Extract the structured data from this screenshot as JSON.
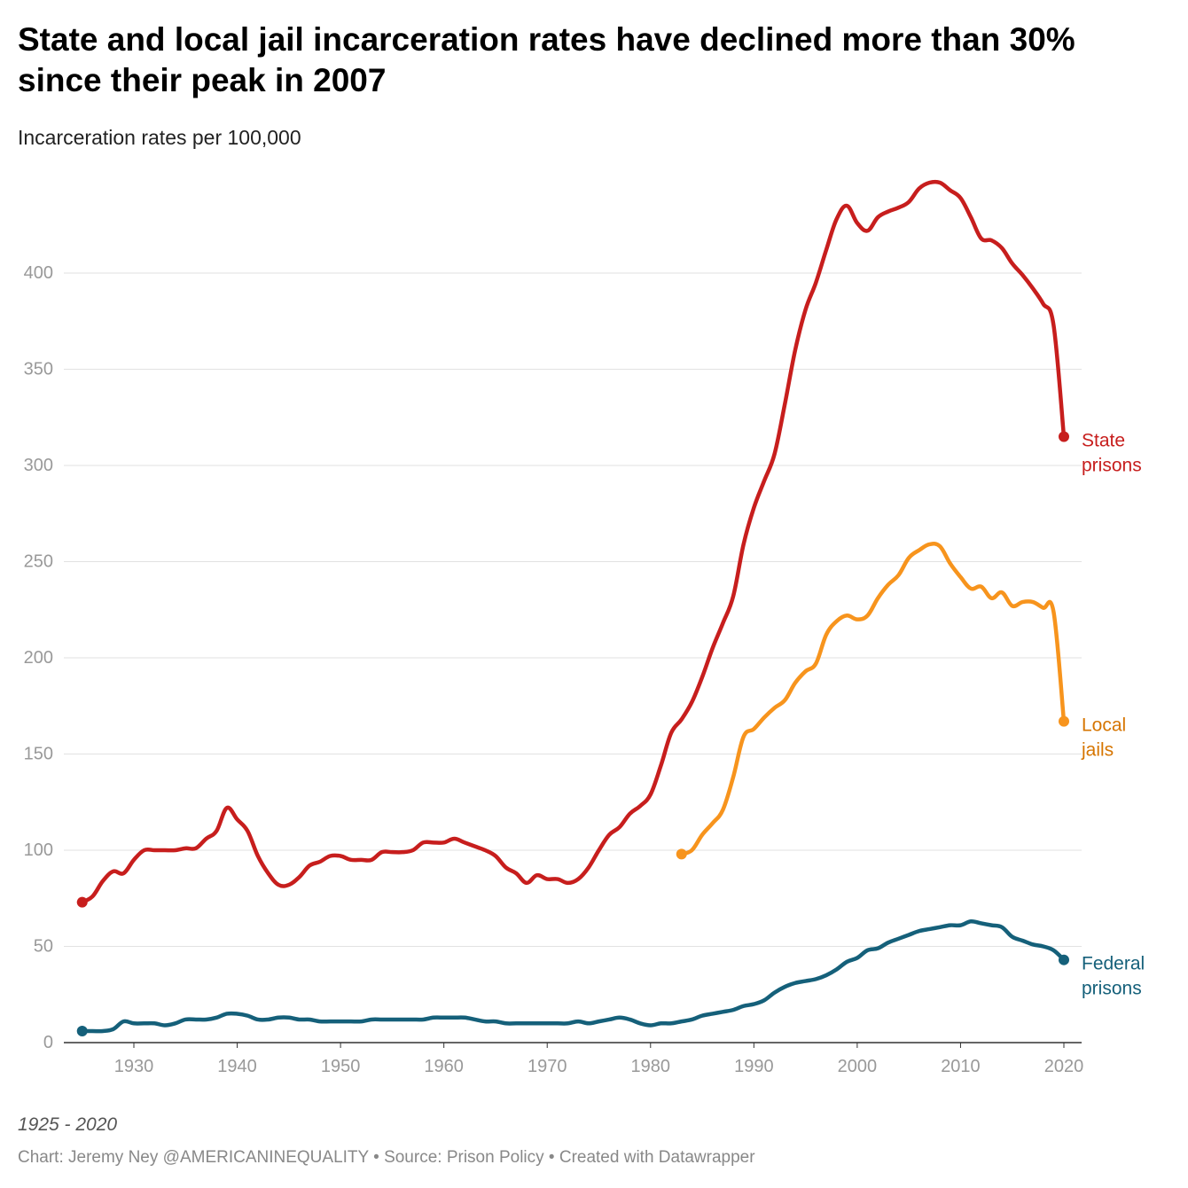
{
  "title": "State and local jail incarceration rates have declined more than 30% since their peak in 2007",
  "subtitle": "Incarceration rates per 100,000",
  "notes": "1925 - 2020",
  "source": "Chart: Jeremy Ney @AMERICANINEQUALITY • Source: Prison Policy • Created with Datawrapper",
  "chart_data": {
    "type": "line",
    "title": "State and local jail incarceration rates have declined more than 30% since their peak in 2007",
    "ylabel": "Incarceration rates per 100,000",
    "xlim": [
      1925,
      2020
    ],
    "ylim": [
      0,
      450
    ],
    "yticks": [
      0,
      50,
      100,
      150,
      200,
      250,
      300,
      350,
      400
    ],
    "xticks": [
      1930,
      1940,
      1950,
      1960,
      1970,
      1980,
      1990,
      2000,
      2010,
      2020
    ],
    "grid": true,
    "series": [
      {
        "name": "State prisons",
        "label_lines": [
          "State",
          "prisons"
        ],
        "color": "#c71e1d",
        "label_color": "#c71e1d",
        "start": 1925,
        "values": [
          73,
          76,
          84,
          89,
          88,
          95,
          100,
          100,
          100,
          100,
          101,
          101,
          106,
          110,
          122,
          116,
          110,
          97,
          88,
          82,
          82,
          86,
          92,
          94,
          97,
          97,
          95,
          95,
          95,
          99,
          99,
          99,
          100,
          104,
          104,
          104,
          106,
          104,
          102,
          100,
          97,
          91,
          88,
          83,
          87,
          85,
          85,
          83,
          85,
          91,
          100,
          108,
          112,
          119,
          123,
          129,
          144,
          161,
          168,
          177,
          190,
          205,
          218,
          232,
          259,
          278,
          292,
          306,
          332,
          360,
          381,
          395,
          412,
          428,
          435,
          426,
          422,
          429,
          432,
          434,
          437,
          444,
          447,
          447,
          443,
          439,
          429,
          418,
          417,
          413,
          405,
          399,
          392,
          384,
          373,
          315
        ]
      },
      {
        "name": "Local jails",
        "label_lines": [
          "Local",
          "jails"
        ],
        "color": "#f7941d",
        "label_color": "#d67500",
        "start": 1983,
        "values": [
          98,
          100,
          108,
          114,
          121,
          138,
          159,
          163,
          169,
          174,
          178,
          187,
          193,
          197,
          212,
          219,
          222,
          220,
          222,
          231,
          238,
          243,
          252,
          256,
          259,
          258,
          249,
          242,
          236,
          237,
          231,
          234,
          227,
          229,
          229,
          226,
          224,
          167
        ]
      },
      {
        "name": "Federal prisons",
        "label_lines": [
          "Federal",
          "prisons"
        ],
        "color": "#15607a",
        "label_color": "#15607a",
        "start": 1925,
        "values": [
          6,
          6,
          6,
          7,
          11,
          10,
          10,
          10,
          9,
          10,
          12,
          12,
          12,
          13,
          15,
          15,
          14,
          12,
          12,
          13,
          13,
          12,
          12,
          11,
          11,
          11,
          11,
          11,
          12,
          12,
          12,
          12,
          12,
          12,
          13,
          13,
          13,
          13,
          12,
          11,
          11,
          10,
          10,
          10,
          10,
          10,
          10,
          10,
          11,
          10,
          11,
          12,
          13,
          12,
          10,
          9,
          10,
          10,
          11,
          12,
          14,
          15,
          16,
          17,
          19,
          20,
          22,
          26,
          29,
          31,
          32,
          33,
          35,
          38,
          42,
          44,
          48,
          49,
          52,
          54,
          56,
          58,
          59,
          60,
          61,
          61,
          63,
          62,
          61,
          60,
          55,
          53,
          51,
          50,
          48,
          43
        ]
      }
    ]
  }
}
